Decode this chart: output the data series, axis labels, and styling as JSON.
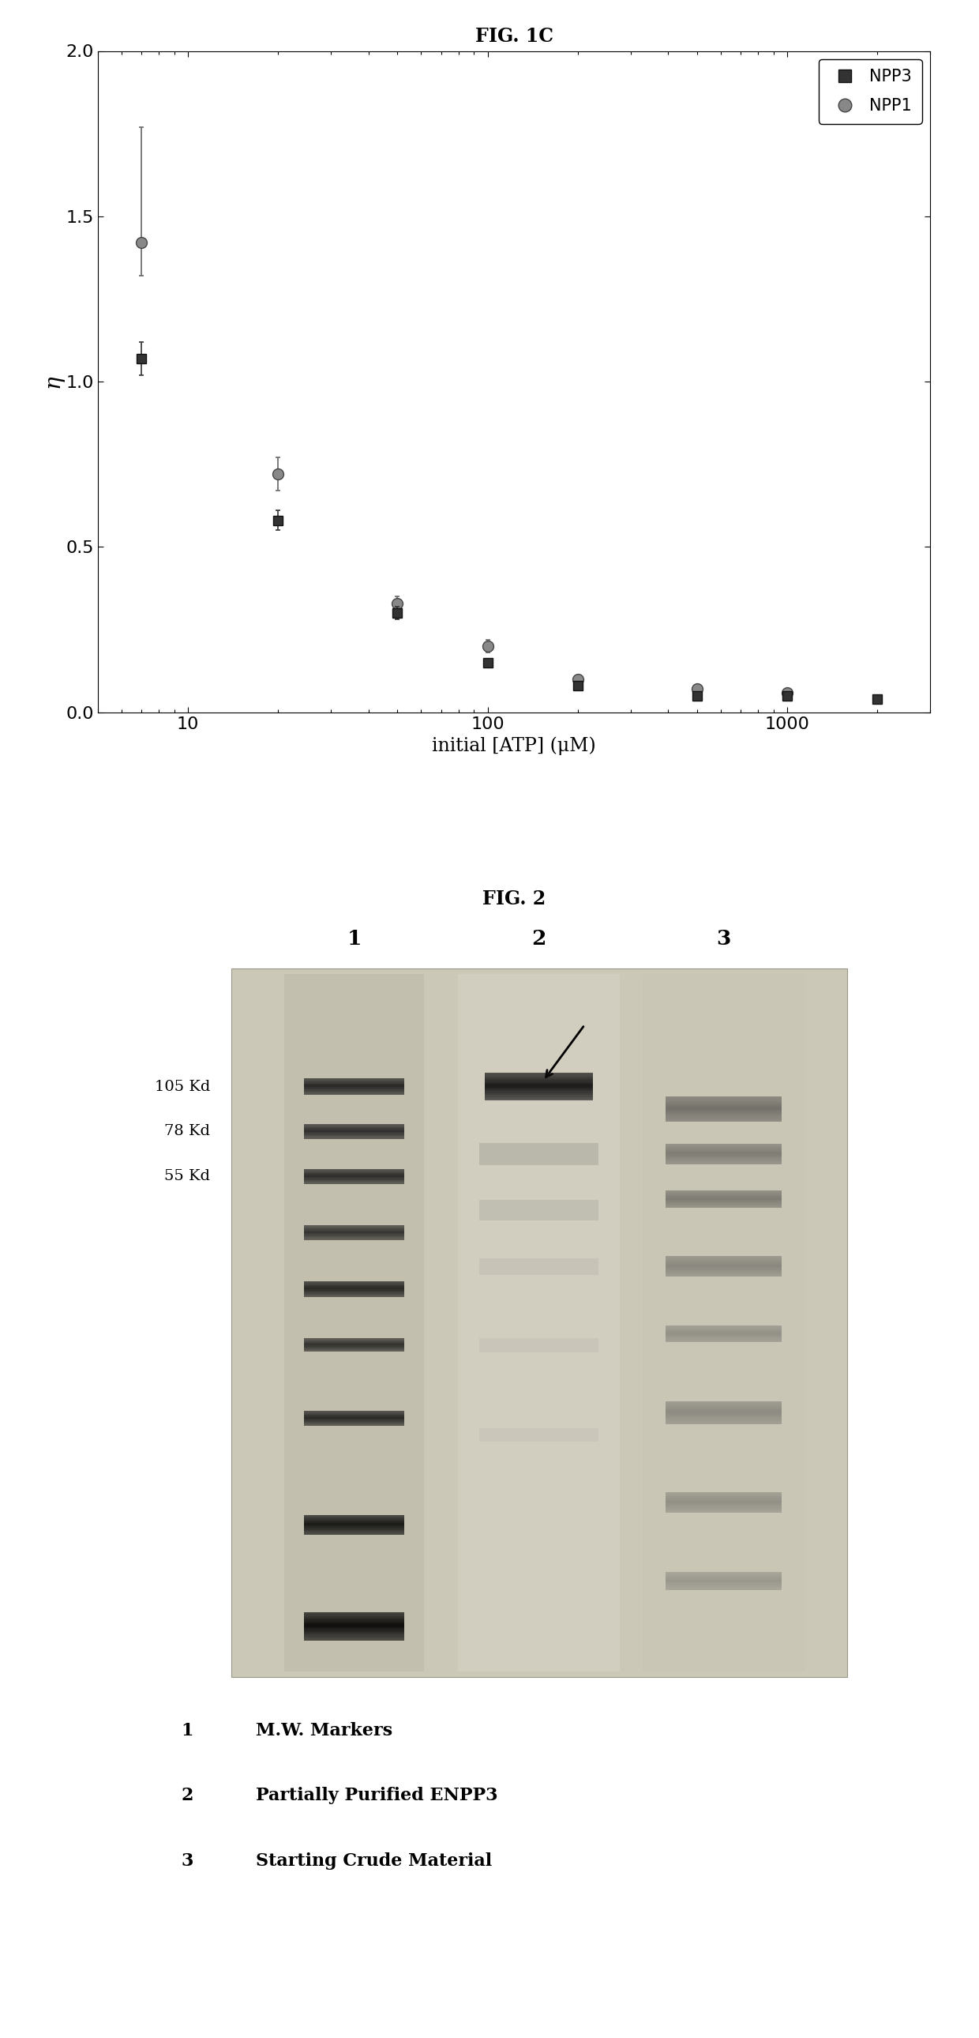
{
  "fig1c_title": "FIG. 1C",
  "fig2_title": "FIG. 2",
  "xlabel": "initial [ATP] (μM)",
  "ylabel": "η",
  "ylim": [
    0.0,
    2.0
  ],
  "yticks": [
    0.0,
    0.5,
    1.0,
    1.5,
    2.0
  ],
  "npp3_x": [
    7,
    20,
    50,
    100,
    200,
    500,
    1000,
    2000
  ],
  "npp3_y": [
    1.07,
    0.58,
    0.3,
    0.15,
    0.08,
    0.05,
    0.05,
    0.04
  ],
  "npp3_yerr": [
    0.05,
    0.03,
    0.02,
    0.01,
    0.01,
    0.01,
    0.01,
    0.01
  ],
  "npp1_x": [
    7,
    20,
    50,
    100,
    200,
    500,
    1000
  ],
  "npp1_y": [
    1.42,
    0.72,
    0.33,
    0.2,
    0.1,
    0.07,
    0.06
  ],
  "npp1_yerr_upper": [
    0.35,
    0.05,
    0.02,
    0.02,
    0.01,
    0.01,
    0.01
  ],
  "npp1_yerr_lower": [
    0.1,
    0.05,
    0.02,
    0.02,
    0.01,
    0.01,
    0.01
  ],
  "gel_labels": [
    "1",
    "2",
    "3"
  ],
  "mw_labels": [
    "105 Kd",
    "78 Kd",
    "55 Kd"
  ],
  "legend_numbers": [
    "1",
    "2",
    "3"
  ],
  "legend_texts": [
    "M.W. Markers",
    "Partially Purified ENPP3",
    "Starting Crude Material"
  ]
}
